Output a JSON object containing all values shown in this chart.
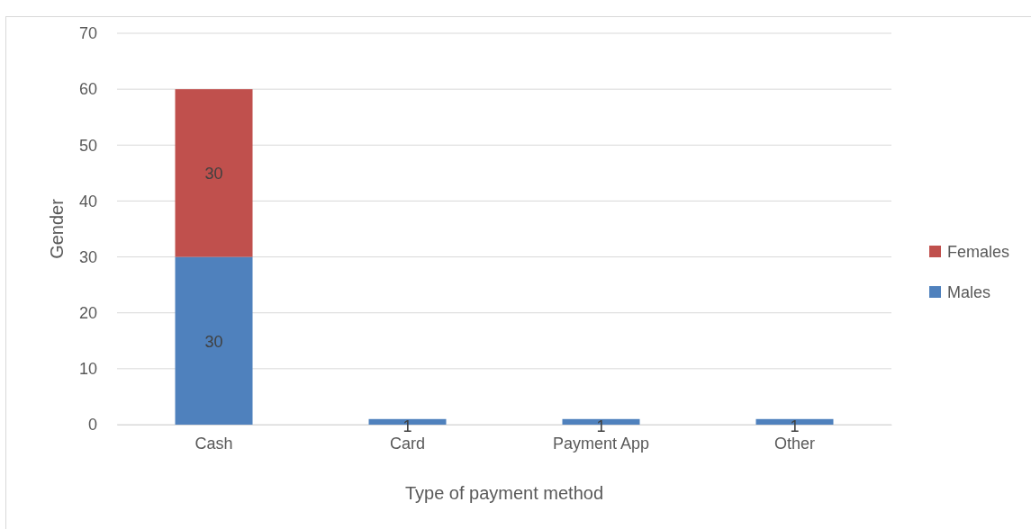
{
  "chart_data": {
    "type": "bar",
    "stacked": true,
    "xlabel": "Type of payment method",
    "ylabel": "Gender",
    "categories": [
      "Cash",
      "Card",
      "Payment App",
      "Other"
    ],
    "series": [
      {
        "name": "Males",
        "color": "#4f81bd",
        "values": [
          30,
          1,
          1,
          1
        ]
      },
      {
        "name": "Females",
        "color": "#c0504d",
        "values": [
          30,
          null,
          null,
          null
        ]
      }
    ],
    "ylim": [
      0,
      70
    ],
    "yticks": [
      0,
      10,
      20,
      30,
      40,
      50,
      60,
      70
    ],
    "grid": "y",
    "legend": "right",
    "data_labels": true
  }
}
